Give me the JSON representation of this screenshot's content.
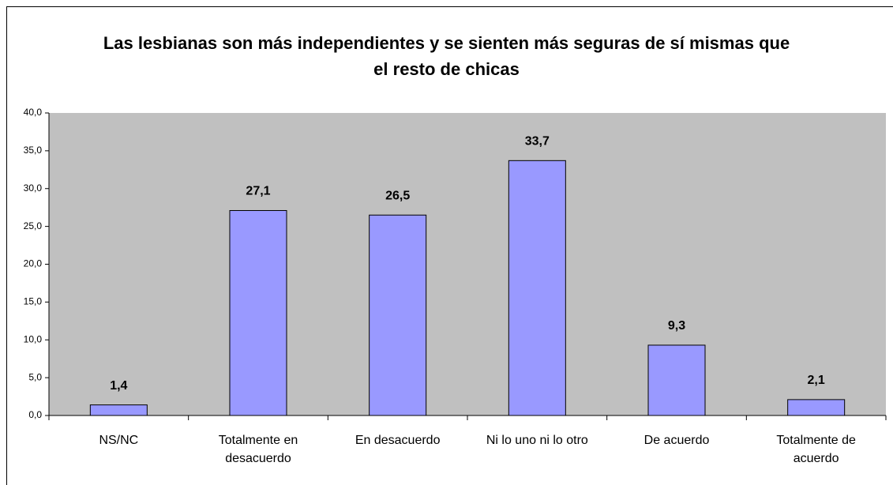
{
  "chart_data": {
    "type": "bar",
    "title": "Las lesbianas son más independientes y se sienten más seguras de sí mismas que el resto de chicas",
    "categories": [
      "NS/NC",
      "Totalmente en desacuerdo",
      "En desacuerdo",
      "Ni lo uno ni lo otro",
      "De acuerdo",
      "Totalmente de acuerdo"
    ],
    "values": [
      1.4,
      27.1,
      26.5,
      33.7,
      9.3,
      2.1
    ],
    "value_labels": [
      "1,4",
      "27,1",
      "26,5",
      "33,7",
      "9,3",
      "2,1"
    ],
    "color": "#9999ff",
    "ylim": [
      0,
      40
    ],
    "yticks": [
      {
        "value": 0,
        "label": "0,0"
      },
      {
        "value": 5,
        "label": "5,0"
      },
      {
        "value": 10,
        "label": "10,0"
      },
      {
        "value": 15,
        "label": "15,0"
      },
      {
        "value": 20,
        "label": "20,0"
      },
      {
        "value": 25,
        "label": "25,0"
      },
      {
        "value": 30,
        "label": "30,0"
      },
      {
        "value": 35,
        "label": "35,0"
      },
      {
        "value": 40,
        "label": "40,0"
      }
    ],
    "grid": false
  }
}
